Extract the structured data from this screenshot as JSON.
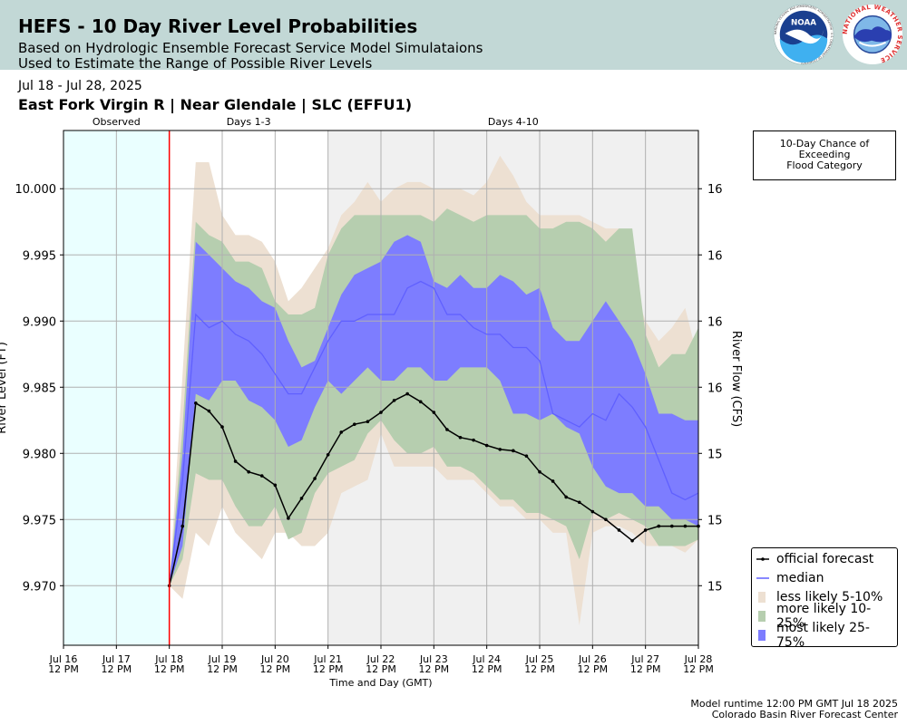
{
  "header": {
    "title": "HEFS - 10 Day River Level Probabilities",
    "subtitle1": "Based on Hydrologic Ensemble Forecast Service Model Simulataions",
    "subtitle2": "Used to Estimate the Range of Possible River Levels"
  },
  "date_range": "Jul 18 - Jul 28, 2025",
  "location": "East Fork Virgin R | Near Glendale | SLC (EFFU1)",
  "logos": {
    "noaa_text": "NOAA",
    "noaa_ring": "NATIONAL OCEANIC AND ATMOSPHERIC ADMINISTRATION · U.S. DEPARTMENT OF COMMERCE",
    "nws_ring": "NATIONAL WEATHER SERVICE"
  },
  "flood_box": {
    "line1": "10-Day Chance of",
    "line2": "Exceeding",
    "line3": "Flood Category"
  },
  "footer": {
    "runtime": "Model runtime 12:00 PM GMT Jul 18 2025",
    "center": "Colorado Basin River Forecast Center"
  },
  "colors": {
    "observed_bg": "#eaffff",
    "days410_bg": "#f0f0f0",
    "less_likely": "#ede0d2",
    "more_likely": "#b6ceaf",
    "most_likely": "#7d7dff",
    "median": "#6060ff",
    "official": "#000000",
    "forecast_start": "#ff0000"
  },
  "chart_data": {
    "type": "area",
    "title": "",
    "xlabel": "Time and Day (GMT)",
    "ylabel": "River Level (FT)",
    "ylabel_right": "River Flow (CFS)",
    "ylim": [
      9.9655,
      10.0044
    ],
    "xlim_days": [
      "Jul 16 12 PM",
      "Jul 28 12 PM"
    ],
    "grid": true,
    "legend_position": "lower-right",
    "x_ticks": [
      {
        "d": 0,
        "l1": "Jul 16",
        "l2": "12 PM"
      },
      {
        "d": 1,
        "l1": "Jul 17",
        "l2": "12 PM"
      },
      {
        "d": 2,
        "l1": "Jul 18",
        "l2": "12 PM"
      },
      {
        "d": 3,
        "l1": "Jul 19",
        "l2": "12 PM"
      },
      {
        "d": 4,
        "l1": "Jul 20",
        "l2": "12 PM"
      },
      {
        "d": 5,
        "l1": "Jul 21",
        "l2": "12 PM"
      },
      {
        "d": 6,
        "l1": "Jul 22",
        "l2": "12 PM"
      },
      {
        "d": 7,
        "l1": "Jul 23",
        "l2": "12 PM"
      },
      {
        "d": 8,
        "l1": "Jul 24",
        "l2": "12 PM"
      },
      {
        "d": 9,
        "l1": "Jul 25",
        "l2": "12 PM"
      },
      {
        "d": 10,
        "l1": "Jul 26",
        "l2": "12 PM"
      },
      {
        "d": 11,
        "l1": "Jul 27",
        "l2": "12 PM"
      },
      {
        "d": 12,
        "l1": "Jul 28",
        "l2": "12 PM"
      }
    ],
    "y_ticks": [
      {
        "v": 9.97,
        "label": "9.970",
        "right": "15"
      },
      {
        "v": 9.975,
        "label": "9.975",
        "right": "15"
      },
      {
        "v": 9.98,
        "label": "9.980",
        "right": "15"
      },
      {
        "v": 9.985,
        "label": "9.985",
        "right": "16"
      },
      {
        "v": 9.99,
        "label": "9.990",
        "right": "16"
      },
      {
        "v": 9.995,
        "label": "9.995",
        "right": "16"
      },
      {
        "v": 10.0,
        "label": "10.000",
        "right": "16"
      }
    ],
    "regions": [
      {
        "label": "Observed",
        "start": 0,
        "end": 2
      },
      {
        "label": "Days 1-3",
        "start": 2,
        "end": 5
      },
      {
        "label": "Days 4-10",
        "start": 5,
        "end": 12
      }
    ],
    "forecast_start_day": 2,
    "series": [
      {
        "name": "less likely 5-10%",
        "x": [
          2,
          2.25,
          2.5,
          2.75,
          3,
          3.25,
          3.5,
          3.75,
          4,
          4.25,
          4.5,
          4.75,
          5,
          5.25,
          5.5,
          5.75,
          6,
          6.25,
          6.5,
          6.75,
          7,
          7.25,
          7.5,
          7.75,
          8,
          8.25,
          8.5,
          8.75,
          9,
          9.25,
          9.5,
          9.75,
          10,
          10.25,
          10.5,
          10.75,
          11,
          11.25,
          11.5,
          11.75,
          12
        ],
        "low": [
          9.97,
          9.969,
          9.974,
          9.973,
          9.976,
          9.974,
          9.973,
          9.972,
          9.974,
          9.974,
          9.973,
          9.973,
          9.974,
          9.977,
          9.9775,
          9.978,
          9.9815,
          9.979,
          9.979,
          9.979,
          9.979,
          9.978,
          9.978,
          9.978,
          9.977,
          9.976,
          9.976,
          9.975,
          9.975,
          9.974,
          9.974,
          9.967,
          9.974,
          9.9745,
          9.9745,
          9.974,
          9.973,
          9.973,
          9.973,
          9.9725,
          9.9735
        ],
        "high": [
          9.97,
          9.986,
          10.002,
          10.002,
          9.998,
          9.9965,
          9.9965,
          9.996,
          9.9945,
          9.9915,
          9.9925,
          9.994,
          9.9955,
          9.998,
          9.999,
          10.0005,
          9.999,
          10.0,
          10.0005,
          10.0005,
          10.0,
          10.0,
          10.0,
          9.9995,
          10.0005,
          10.0025,
          10.001,
          9.999,
          9.998,
          9.998,
          9.998,
          9.998,
          9.9975,
          9.997,
          9.997,
          9.993,
          9.99,
          9.9885,
          9.9895,
          9.991,
          9.987
        ]
      },
      {
        "name": "more likely 10-25%",
        "x": [
          2,
          2.25,
          2.5,
          2.75,
          3,
          3.25,
          3.5,
          3.75,
          4,
          4.25,
          4.5,
          4.75,
          5,
          5.25,
          5.5,
          5.75,
          6,
          6.25,
          6.5,
          6.75,
          7,
          7.25,
          7.5,
          7.75,
          8,
          8.25,
          8.5,
          8.75,
          9,
          9.25,
          9.5,
          9.75,
          10,
          10.25,
          10.5,
          10.75,
          11,
          11.25,
          11.5,
          11.75,
          12
        ],
        "low": [
          9.97,
          9.972,
          9.9785,
          9.978,
          9.978,
          9.976,
          9.9745,
          9.9745,
          9.976,
          9.9735,
          9.974,
          9.977,
          9.9785,
          9.979,
          9.9795,
          9.9815,
          9.9825,
          9.981,
          9.98,
          9.98,
          9.9805,
          9.979,
          9.979,
          9.9785,
          9.9775,
          9.9765,
          9.9765,
          9.9755,
          9.9755,
          9.975,
          9.9745,
          9.972,
          9.9755,
          9.975,
          9.9755,
          9.975,
          9.9745,
          9.973,
          9.973,
          9.973,
          9.9735
        ],
        "high": [
          9.97,
          9.982,
          9.9975,
          9.9965,
          9.996,
          9.9945,
          9.9945,
          9.994,
          9.9915,
          9.9905,
          9.9905,
          9.991,
          9.995,
          9.997,
          9.998,
          9.998,
          9.998,
          9.998,
          9.998,
          9.998,
          9.9975,
          9.9985,
          9.998,
          9.9975,
          9.998,
          9.998,
          9.998,
          9.998,
          9.997,
          9.997,
          9.9975,
          9.9975,
          9.997,
          9.996,
          9.997,
          9.997,
          9.989,
          9.9865,
          9.9875,
          9.9875,
          9.9895
        ]
      },
      {
        "name": "most likely 25-75%",
        "x": [
          2,
          2.25,
          2.5,
          2.75,
          3,
          3.25,
          3.5,
          3.75,
          4,
          4.25,
          4.5,
          4.75,
          5,
          5.25,
          5.5,
          5.75,
          6,
          6.25,
          6.5,
          6.75,
          7,
          7.25,
          7.5,
          7.75,
          8,
          8.25,
          8.5,
          8.75,
          9,
          9.25,
          9.5,
          9.75,
          10,
          10.25,
          10.5,
          10.75,
          11,
          11.25,
          11.5,
          11.75,
          12
        ],
        "low": [
          9.97,
          9.973,
          9.9845,
          9.984,
          9.9855,
          9.9855,
          9.984,
          9.9835,
          9.9825,
          9.9805,
          9.981,
          9.9835,
          9.9855,
          9.9845,
          9.9855,
          9.9865,
          9.9855,
          9.9855,
          9.9865,
          9.9865,
          9.9855,
          9.9855,
          9.9865,
          9.9865,
          9.9865,
          9.9855,
          9.983,
          9.983,
          9.9825,
          9.983,
          9.982,
          9.9815,
          9.979,
          9.9775,
          9.977,
          9.977,
          9.976,
          9.976,
          9.975,
          9.975,
          9.9745
        ],
        "high": [
          9.97,
          9.98,
          9.996,
          9.995,
          9.994,
          9.993,
          9.9925,
          9.9915,
          9.991,
          9.9885,
          9.9865,
          9.987,
          9.9895,
          9.992,
          9.9935,
          9.994,
          9.9945,
          9.996,
          9.9965,
          9.996,
          9.993,
          9.9925,
          9.9935,
          9.9925,
          9.9925,
          9.9935,
          9.993,
          9.992,
          9.9925,
          9.9895,
          9.9885,
          9.9885,
          9.99,
          9.9915,
          9.99,
          9.9885,
          9.986,
          9.983,
          9.983,
          9.9825,
          9.9825
        ]
      },
      {
        "name": "median",
        "x": [
          2,
          2.25,
          2.5,
          2.75,
          3,
          3.25,
          3.5,
          3.75,
          4,
          4.25,
          4.5,
          4.75,
          5,
          5.25,
          5.5,
          5.75,
          6,
          6.25,
          6.5,
          6.75,
          7,
          7.25,
          7.5,
          7.75,
          8,
          8.25,
          8.5,
          8.75,
          9,
          9.25,
          9.5,
          9.75,
          10,
          10.25,
          10.5,
          10.75,
          11,
          11.25,
          11.5,
          11.75,
          12
        ],
        "values": [
          9.97,
          9.978,
          9.9905,
          9.9895,
          9.99,
          9.989,
          9.9885,
          9.9875,
          9.986,
          9.9845,
          9.9845,
          9.9865,
          9.9885,
          9.99,
          9.99,
          9.9905,
          9.9905,
          9.9905,
          9.9925,
          9.993,
          9.9925,
          9.9905,
          9.9905,
          9.9895,
          9.989,
          9.989,
          9.988,
          9.988,
          9.987,
          9.983,
          9.9825,
          9.982,
          9.983,
          9.9825,
          9.9845,
          9.9835,
          9.982,
          9.9795,
          9.977,
          9.9765,
          9.977
        ]
      },
      {
        "name": "official forecast",
        "x": [
          2,
          2.25,
          2.5,
          2.75,
          3,
          3.25,
          3.5,
          3.75,
          4,
          4.25,
          4.5,
          4.75,
          5,
          5.25,
          5.5,
          5.75,
          6,
          6.25,
          6.5,
          6.75,
          7,
          7.25,
          7.5,
          7.75,
          8,
          8.25,
          8.5,
          8.75,
          9,
          9.25,
          9.5,
          9.75,
          10,
          10.25,
          10.5,
          10.75,
          11,
          11.25,
          11.5,
          11.75,
          12
        ],
        "values": [
          9.97,
          9.9745,
          9.9838,
          9.9832,
          9.982,
          9.9794,
          9.9786,
          9.9783,
          9.9776,
          9.9751,
          9.9766,
          9.9781,
          9.9799,
          9.9816,
          9.9822,
          9.9824,
          9.9831,
          9.984,
          9.9845,
          9.9839,
          9.9831,
          9.9818,
          9.9812,
          9.981,
          9.9806,
          9.9803,
          9.9802,
          9.9798,
          9.9786,
          9.9779,
          9.9767,
          9.9763,
          9.9756,
          9.975,
          9.9742,
          9.9734,
          9.9742,
          9.9745,
          9.9745,
          9.9745,
          9.9745
        ]
      }
    ]
  },
  "legend": {
    "items": [
      {
        "label": "official forecast",
        "kind": "official"
      },
      {
        "label": "median",
        "kind": "median"
      },
      {
        "label": "less likely 5-10%",
        "kind": "less"
      },
      {
        "label": "more likely 10-25%",
        "kind": "more"
      },
      {
        "label": "most likely 25-75%",
        "kind": "most"
      }
    ]
  }
}
